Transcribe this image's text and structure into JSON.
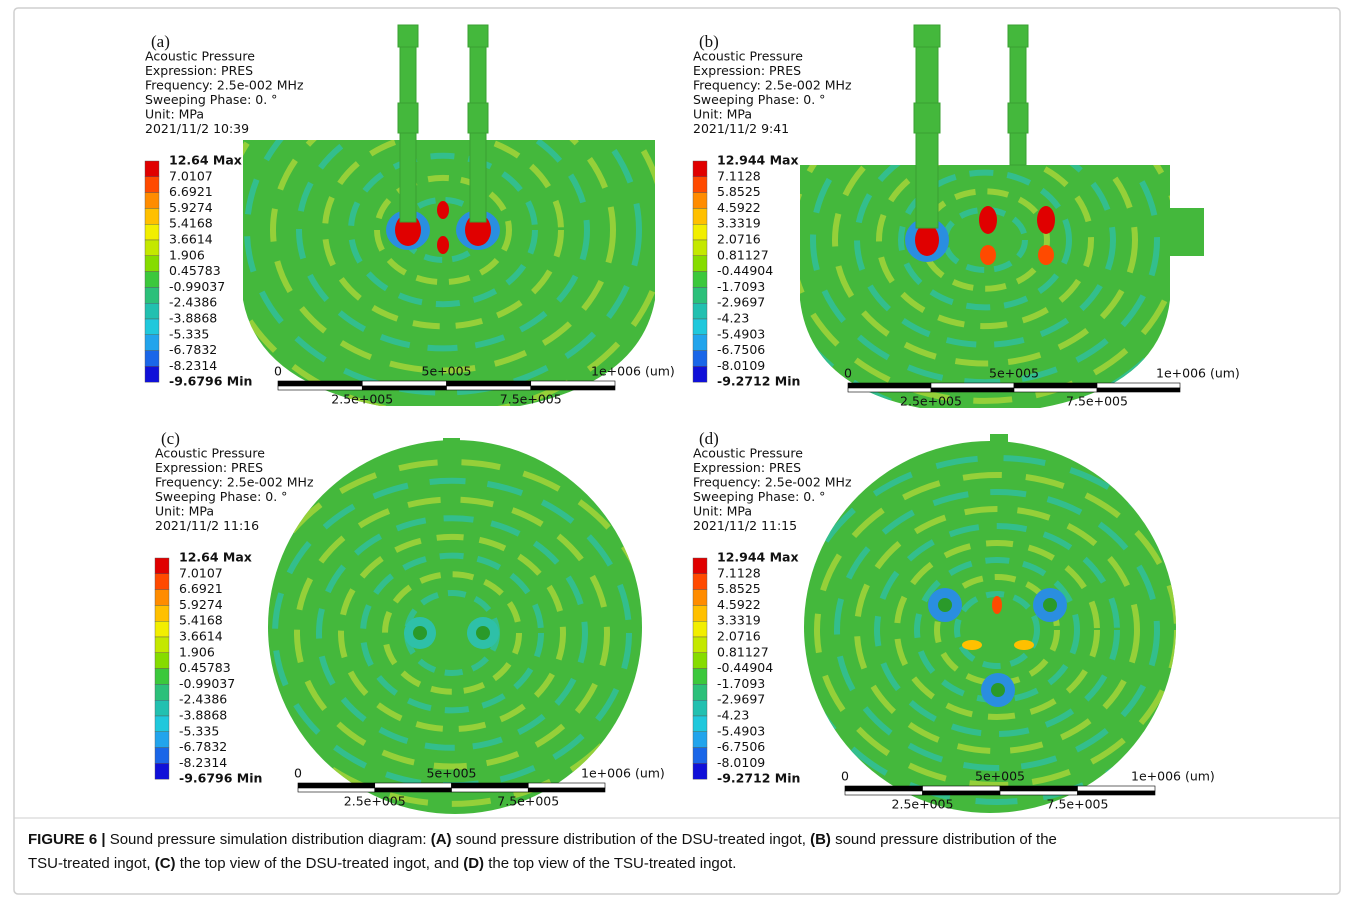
{
  "panels": [
    {
      "label": "(a)",
      "header": [
        "Acoustic Pressure",
        "Expression: PRES",
        "Frequency: 2.5e-002 MHz",
        "Sweeping Phase: 0. °",
        "Unit: MPa",
        "2021/11/2 10:39"
      ],
      "legend": [
        "12.64 Max",
        "7.0107",
        "6.6921",
        "5.9274",
        "5.4168",
        "3.6614",
        "1.906",
        "0.45783",
        "-0.99037",
        "-2.4386",
        "-3.8868",
        "-5.335",
        "-6.7832",
        "-8.2314",
        "-9.6796 Min"
      ],
      "scale": [
        "0",
        "5e+005",
        "1e+006 (um)",
        "2.5e+005",
        "7.5e+005"
      ]
    },
    {
      "label": "(b)",
      "header": [
        "Acoustic Pressure",
        "Expression: PRES",
        "Frequency: 2.5e-002 MHz",
        "Sweeping Phase: 0. °",
        "Unit: MPa",
        "2021/11/2 9:41"
      ],
      "legend": [
        "12.944 Max",
        "7.1128",
        "5.8525",
        "4.5922",
        "3.3319",
        "2.0716",
        "0.81127",
        "-0.44904",
        "-1.7093",
        "-2.9697",
        "-4.23",
        "-5.4903",
        "-6.7506",
        "-8.0109",
        "-9.2712 Min"
      ],
      "scale": [
        "0",
        "5e+005",
        "1e+006 (um)",
        "2.5e+005",
        "7.5e+005"
      ]
    },
    {
      "label": "(c)",
      "header": [
        "Acoustic Pressure",
        "Expression: PRES",
        "Frequency: 2.5e-002 MHz",
        "Sweeping Phase: 0. °",
        "Unit: MPa",
        "2021/11/2 11:16"
      ],
      "legend": [
        "12.64 Max",
        "7.0107",
        "6.6921",
        "5.9274",
        "5.4168",
        "3.6614",
        "1.906",
        "0.45783",
        "-0.99037",
        "-2.4386",
        "-3.8868",
        "-5.335",
        "-6.7832",
        "-8.2314",
        "-9.6796 Min"
      ],
      "scale": [
        "0",
        "5e+005",
        "1e+006 (um)",
        "2.5e+005",
        "7.5e+005"
      ]
    },
    {
      "label": "(d)",
      "header": [
        "Acoustic Pressure",
        "Expression: PRES",
        "Frequency: 2.5e-002 MHz",
        "Sweeping Phase: 0. °",
        "Unit: MPa",
        "2021/11/2 11:15"
      ],
      "legend": [
        "12.944 Max",
        "7.1128",
        "5.8525",
        "4.5922",
        "3.3319",
        "2.0716",
        "0.81127",
        "-0.44904",
        "-1.7093",
        "-2.9697",
        "-4.23",
        "-5.4903",
        "-6.7506",
        "-8.0109",
        "-9.2712 Min"
      ],
      "scale": [
        "0",
        "5e+005",
        "1e+006 (um)",
        "2.5e+005",
        "7.5e+005"
      ]
    }
  ],
  "legend_colors": [
    "#e00000",
    "#ff4a00",
    "#ff8c00",
    "#ffc000",
    "#f2ee00",
    "#c4e800",
    "#86dc00",
    "#3cc83c",
    "#2cc07a",
    "#22c0b0",
    "#20c8dc",
    "#22a4ec",
    "#1a66e8",
    "#1010d8"
  ],
  "caption": [
    [
      {
        "text": "FIGURE 6 |",
        "bold": true
      },
      {
        "text": " Sound pressure simulation distribution diagram: ",
        "bold": false
      },
      {
        "text": "(A)",
        "bold": true
      },
      {
        "text": " sound pressure distribution of the DSU-treated ingot, ",
        "bold": false
      },
      {
        "text": "(B)",
        "bold": true
      },
      {
        "text": " sound pressure distribution of the",
        "bold": false
      }
    ],
    [
      {
        "text": "TSU-treated ingot, ",
        "bold": false
      },
      {
        "text": "(C)",
        "bold": true
      },
      {
        "text": " the top view of the DSU-treated ingot, and ",
        "bold": false
      },
      {
        "text": "(D)",
        "bold": true
      },
      {
        "text": " the top view of the TSU-treated ingot.",
        "bold": false
      }
    ]
  ]
}
